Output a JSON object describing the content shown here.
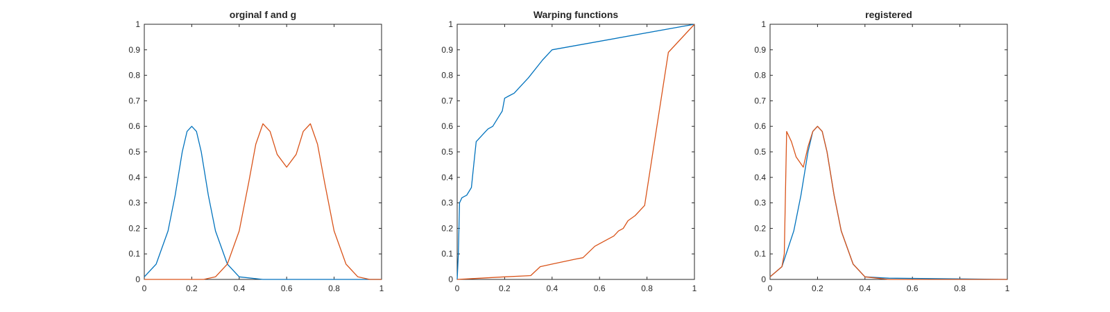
{
  "chart_data": [
    {
      "type": "line",
      "title": "orginal f and g",
      "xlabel": "",
      "ylabel": "",
      "xlim": [
        0,
        1
      ],
      "ylim": [
        0,
        1
      ],
      "xticks": [
        "0",
        "0.2",
        "0.4",
        "0.6",
        "0.8",
        "1"
      ],
      "yticks": [
        "0",
        "0.1",
        "0.2",
        "0.3",
        "0.4",
        "0.5",
        "0.6",
        "0.7",
        "0.8",
        "0.9",
        "1"
      ],
      "grid": false,
      "series": [
        {
          "color": "#0072BD",
          "x": [
            0,
            0.05,
            0.1,
            0.13,
            0.16,
            0.18,
            0.2,
            0.22,
            0.24,
            0.27,
            0.3,
            0.35,
            0.4,
            0.5,
            1.0
          ],
          "y": [
            0.01,
            0.06,
            0.19,
            0.33,
            0.5,
            0.58,
            0.6,
            0.58,
            0.5,
            0.33,
            0.19,
            0.06,
            0.01,
            0.0,
            0.0
          ]
        },
        {
          "color": "#D95319",
          "x": [
            0,
            0.25,
            0.3,
            0.35,
            0.4,
            0.44,
            0.47,
            0.5,
            0.53,
            0.56,
            0.6,
            0.64,
            0.67,
            0.7,
            0.73,
            0.76,
            0.8,
            0.85,
            0.9,
            0.95,
            1.0
          ],
          "y": [
            0.0,
            0.0,
            0.01,
            0.06,
            0.19,
            0.38,
            0.53,
            0.61,
            0.58,
            0.49,
            0.44,
            0.49,
            0.58,
            0.61,
            0.53,
            0.38,
            0.19,
            0.06,
            0.01,
            0.0,
            0.0
          ]
        }
      ]
    },
    {
      "type": "line",
      "title": "Warping functions",
      "xlabel": "",
      "ylabel": "",
      "xlim": [
        0,
        1
      ],
      "ylim": [
        0,
        1
      ],
      "xticks": [
        "0",
        "0.2",
        "0.4",
        "0.6",
        "0.8",
        "1"
      ],
      "yticks": [
        "0",
        "0.1",
        "0.2",
        "0.3",
        "0.4",
        "0.5",
        "0.6",
        "0.7",
        "0.8",
        "0.9",
        "1"
      ],
      "grid": false,
      "series": [
        {
          "color": "#0072BD",
          "x": [
            0,
            0.005,
            0.01,
            0.02,
            0.04,
            0.06,
            0.07,
            0.08,
            0.1,
            0.12,
            0.13,
            0.15,
            0.17,
            0.19,
            0.2,
            0.22,
            0.24,
            0.3,
            0.36,
            0.4,
            1.0
          ],
          "y": [
            0.0,
            0.1,
            0.3,
            0.32,
            0.33,
            0.36,
            0.45,
            0.54,
            0.56,
            0.58,
            0.59,
            0.6,
            0.63,
            0.66,
            0.71,
            0.72,
            0.73,
            0.79,
            0.86,
            0.9,
            1.0
          ]
        },
        {
          "color": "#D95319",
          "x": [
            0,
            0.1,
            0.2,
            0.31,
            0.35,
            0.4,
            0.45,
            0.5,
            0.53,
            0.58,
            0.62,
            0.66,
            0.68,
            0.7,
            0.72,
            0.75,
            0.79,
            0.89,
            1.0
          ],
          "y": [
            0.0,
            0.005,
            0.01,
            0.015,
            0.05,
            0.06,
            0.07,
            0.08,
            0.085,
            0.13,
            0.15,
            0.17,
            0.19,
            0.2,
            0.23,
            0.25,
            0.29,
            0.89,
            1.0
          ]
        }
      ]
    },
    {
      "type": "line",
      "title": "registered",
      "xlabel": "",
      "ylabel": "",
      "xlim": [
        0,
        1
      ],
      "ylim": [
        0,
        1
      ],
      "xticks": [
        "0",
        "0.2",
        "0.4",
        "0.6",
        "0.8",
        "1"
      ],
      "yticks": [
        "0",
        "0.1",
        "0.2",
        "0.3",
        "0.4",
        "0.5",
        "0.6",
        "0.7",
        "0.8",
        "0.9",
        "1"
      ],
      "grid": false,
      "series": [
        {
          "color": "#0072BD",
          "x": [
            0,
            0.05,
            0.1,
            0.13,
            0.16,
            0.18,
            0.2,
            0.22,
            0.24,
            0.27,
            0.3,
            0.35,
            0.4,
            0.5,
            1.0
          ],
          "y": [
            0.01,
            0.05,
            0.19,
            0.33,
            0.5,
            0.58,
            0.6,
            0.58,
            0.5,
            0.33,
            0.19,
            0.06,
            0.01,
            0.005,
            0.0
          ]
        },
        {
          "color": "#D95319",
          "x": [
            0,
            0.05,
            0.06,
            0.07,
            0.09,
            0.11,
            0.14,
            0.16,
            0.18,
            0.2,
            0.22,
            0.24,
            0.27,
            0.3,
            0.35,
            0.4,
            0.45,
            0.5,
            1.0
          ],
          "y": [
            0.01,
            0.05,
            0.1,
            0.58,
            0.54,
            0.48,
            0.44,
            0.52,
            0.58,
            0.6,
            0.58,
            0.5,
            0.33,
            0.19,
            0.06,
            0.01,
            0.005,
            0.0,
            0.0
          ]
        }
      ]
    }
  ]
}
